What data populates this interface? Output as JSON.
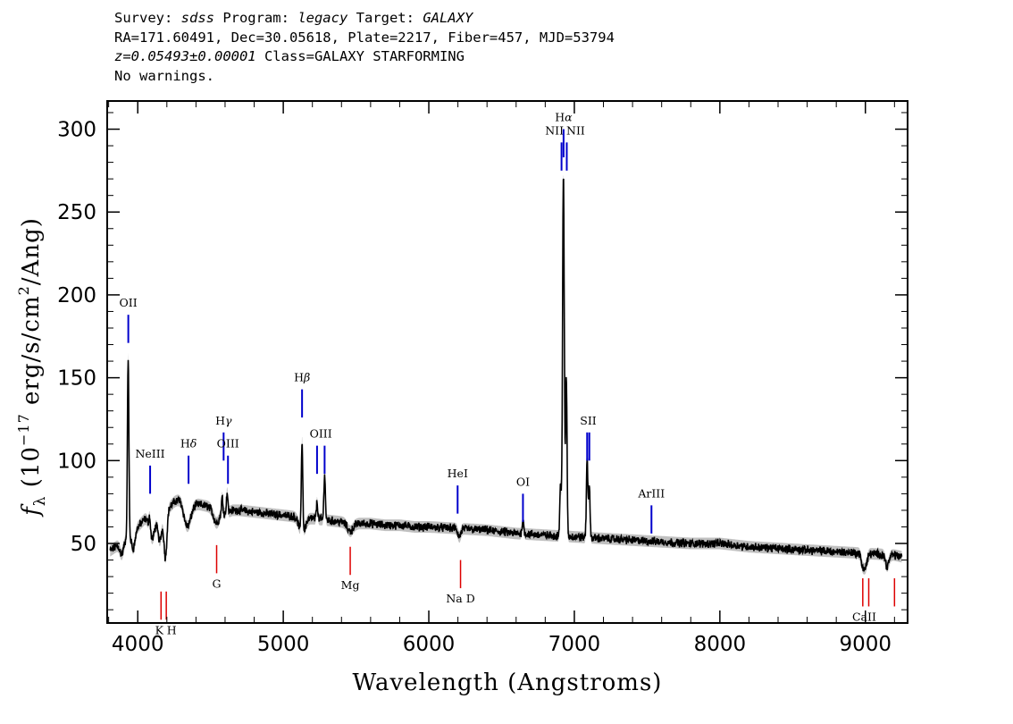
{
  "header": {
    "survey_label": "Survey: ",
    "survey": "sdss",
    "program_label": " Program: ",
    "program": "legacy",
    "target_label": " Target: ",
    "target": "GALAXY",
    "line2": "RA=171.60491, Dec=30.05618, Plate=2217, Fiber=457, MJD=53794",
    "redshift": "z=0.05493±0.00001",
    "class_text": " Class=GALAXY STARFORMING",
    "warnings": "No warnings."
  },
  "colors": {
    "spectrum": "#000000",
    "error_band": "#b0b0b0",
    "emission_marker": "#0000cc",
    "absorption_marker": "#dd0000"
  },
  "chart_data": {
    "type": "line",
    "xlabel": "Wavelength (Angstroms)",
    "ylabel_parts": [
      "f",
      "λ",
      " (10",
      "−17",
      " erg/s/cm",
      "2",
      "/Ang)"
    ],
    "xlim": [
      3790,
      9290
    ],
    "ylim": [
      2,
      317
    ],
    "xticks": [
      4000,
      5000,
      6000,
      7000,
      8000,
      9000
    ],
    "yticks": [
      50,
      100,
      150,
      200,
      250,
      300
    ],
    "grid": false,
    "series": [
      {
        "continuum": [
          [
            3800,
            45
          ],
          [
            3850,
            48
          ],
          [
            3900,
            51
          ],
          [
            3950,
            55
          ],
          [
            4000,
            60
          ],
          [
            4050,
            65
          ],
          [
            4100,
            68
          ],
          [
            4150,
            70
          ],
          [
            4200,
            70
          ],
          [
            4250,
            75
          ],
          [
            4300,
            78
          ],
          [
            4350,
            76
          ],
          [
            4400,
            74
          ],
          [
            4450,
            73
          ],
          [
            4500,
            72
          ],
          [
            4550,
            70
          ],
          [
            4600,
            68
          ],
          [
            4650,
            70
          ],
          [
            4700,
            70
          ],
          [
            4800,
            69
          ],
          [
            4900,
            68
          ],
          [
            5000,
            67
          ],
          [
            5100,
            66
          ],
          [
            5200,
            65
          ],
          [
            5300,
            64
          ],
          [
            5400,
            63
          ],
          [
            5500,
            62
          ],
          [
            5600,
            62
          ],
          [
            5700,
            61
          ],
          [
            5800,
            61
          ],
          [
            5900,
            60
          ],
          [
            6000,
            60
          ],
          [
            6200,
            59
          ],
          [
            6400,
            58
          ],
          [
            6600,
            56
          ],
          [
            6800,
            55
          ],
          [
            7000,
            54
          ],
          [
            7200,
            53
          ],
          [
            7400,
            52
          ],
          [
            7600,
            51
          ],
          [
            7800,
            50
          ],
          [
            8000,
            50
          ],
          [
            8200,
            48
          ],
          [
            8400,
            47
          ],
          [
            8600,
            46
          ],
          [
            8800,
            45
          ],
          [
            9000,
            44
          ],
          [
            9200,
            43
          ],
          [
            9250,
            42
          ]
        ],
        "absorption_lines": [
          {
            "x": 3890,
            "depth": 7,
            "width": 12
          },
          {
            "x": 3970,
            "depth": 10,
            "width": 12
          },
          {
            "x": 4100,
            "depth": 15,
            "width": 18
          },
          {
            "x": 4152,
            "depth": 18,
            "width": 14
          },
          {
            "x": 4190,
            "depth": 28,
            "width": 10
          },
          {
            "x": 4340,
            "depth": 16,
            "width": 25
          },
          {
            "x": 4540,
            "depth": 8,
            "width": 20
          },
          {
            "x": 5130,
            "depth": 10,
            "width": 20
          },
          {
            "x": 5460,
            "depth": 5,
            "width": 20
          },
          {
            "x": 6210,
            "depth": 5,
            "width": 10
          },
          {
            "x": 8980,
            "depth": 6,
            "width": 10
          },
          {
            "x": 9000,
            "depth": 8,
            "width": 12
          },
          {
            "x": 9150,
            "depth": 7,
            "width": 12
          }
        ],
        "emission_lines": [
          {
            "x": 3934,
            "height": 108,
            "width": 5
          },
          {
            "x": 4082,
            "height": 8,
            "width": 5
          },
          {
            "x": 4580,
            "height": 10,
            "width": 5
          },
          {
            "x": 4614,
            "height": 12,
            "width": 5
          },
          {
            "x": 5129,
            "height": 56,
            "width": 5
          },
          {
            "x": 5232,
            "height": 10,
            "width": 5
          },
          {
            "x": 5284,
            "height": 28,
            "width": 5
          },
          {
            "x": 6647,
            "height": 8,
            "width": 6
          },
          {
            "x": 6905,
            "height": 30,
            "width": 5
          },
          {
            "x": 6925,
            "height": 217,
            "width": 6
          },
          {
            "x": 6945,
            "height": 95,
            "width": 5
          },
          {
            "x": 7088,
            "height": 48,
            "width": 5
          },
          {
            "x": 7103,
            "height": 30,
            "width": 5
          }
        ]
      }
    ],
    "emission_markers": [
      {
        "label": "OII",
        "label_suffix": "",
        "x": [
          3935
        ],
        "y_top": 188,
        "y_bottom": 171
      },
      {
        "label": "NeIII",
        "label_suffix": "",
        "x": [
          4085
        ],
        "y_top": 97,
        "y_bottom": 80
      },
      {
        "label": "H",
        "label_suffix": "δ",
        "x": [
          4349
        ],
        "y_top": 103,
        "y_bottom": 86
      },
      {
        "label": "H",
        "label_suffix": "γ",
        "x": [
          4590
        ],
        "y_top": 117,
        "y_bottom": 100
      },
      {
        "label": "OIII",
        "label_suffix": "",
        "x": [
          4620
        ],
        "y_top": 103,
        "y_bottom": 86
      },
      {
        "label": "H",
        "label_suffix": "β",
        "x": [
          5129
        ],
        "y_top": 143,
        "y_bottom": 126
      },
      {
        "label": "OIII",
        "label_suffix": "",
        "x": [
          5232,
          5284
        ],
        "y_top": 109,
        "y_bottom": 92
      },
      {
        "label": "HeI",
        "label_suffix": "",
        "x": [
          6198
        ],
        "y_top": 85,
        "y_bottom": 68
      },
      {
        "label": "OI",
        "label_suffix": "",
        "x": [
          6647
        ],
        "y_top": 80,
        "y_bottom": 63
      },
      {
        "label": "NII",
        "label_suffix": "",
        "x": [
          6912
        ],
        "y_top": 292,
        "y_bottom": 275
      },
      {
        "label": "H",
        "label_suffix": "α",
        "x": [
          6926
        ],
        "y_top": 300,
        "y_bottom": 283
      },
      {
        "label": "NII",
        "label_suffix": "",
        "x": [
          6948
        ],
        "y_top": 292,
        "y_bottom": 275
      },
      {
        "label": "SII",
        "label_suffix": "",
        "x": [
          7088,
          7103
        ],
        "y_top": 117,
        "y_bottom": 100
      },
      {
        "label": "ArIII",
        "label_suffix": "",
        "x": [
          7530
        ],
        "y_top": 73,
        "y_bottom": 56
      }
    ],
    "absorption_markers": [
      {
        "label": "K",
        "x": [
          4160
        ],
        "y_top": 21,
        "y_bottom": 4
      },
      {
        "label": "H",
        "x": [
          4196
        ],
        "y_top": 21,
        "y_bottom": 4
      },
      {
        "label": "G",
        "x": [
          4542
        ],
        "y_top": 49,
        "y_bottom": 32
      },
      {
        "label": "Mg",
        "x": [
          5460
        ],
        "y_top": 48,
        "y_bottom": 31
      },
      {
        "label": "Na D",
        "x": [
          6218
        ],
        "y_top": 40,
        "y_bottom": 23
      },
      {
        "label": "CaII",
        "x": [
          8982,
          9023,
          9200
        ],
        "y_top": 29,
        "y_bottom": 12
      }
    ]
  }
}
